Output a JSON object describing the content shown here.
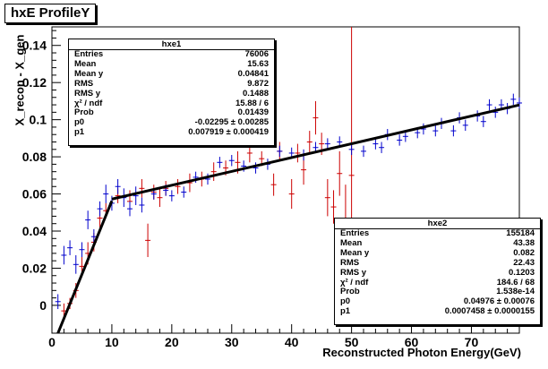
{
  "title": "hxE ProfileY",
  "chart_data": {
    "type": "scatter",
    "title": "hxE ProfileY",
    "xlabel": "Reconstructed Photon Energy(GeV)",
    "ylabel": "X_recon - X_gen",
    "xlim": [
      0,
      78
    ],
    "ylim": [
      -0.015,
      0.15
    ],
    "xticks": [
      "0",
      "10",
      "20",
      "30",
      "40",
      "50",
      "60",
      "70"
    ],
    "yticks": [
      "0",
      "0.02",
      "0.04",
      "0.06",
      "0.08",
      "0.1",
      "0.12",
      "0.14"
    ],
    "colors": {
      "hxe1": "#cc0000",
      "hxe2": "#0000cc",
      "fit": "#000000"
    },
    "series": [
      {
        "name": "hxe1",
        "points": [
          {
            "x": 2,
            "y": -0.003,
            "err": 0.004
          },
          {
            "x": 3,
            "y": 0.001,
            "err": 0.003
          },
          {
            "x": 4,
            "y": 0.008,
            "err": 0.004
          },
          {
            "x": 5,
            "y": 0.021,
            "err": 0.005
          },
          {
            "x": 6,
            "y": 0.028,
            "err": 0.006
          },
          {
            "x": 7,
            "y": 0.034,
            "err": 0.005
          },
          {
            "x": 8,
            "y": 0.047,
            "err": 0.005
          },
          {
            "x": 9,
            "y": 0.051,
            "err": 0.004
          },
          {
            "x": 11,
            "y": 0.059,
            "err": 0.004
          },
          {
            "x": 13,
            "y": 0.056,
            "err": 0.006
          },
          {
            "x": 15,
            "y": 0.063,
            "err": 0.005
          },
          {
            "x": 16,
            "y": 0.035,
            "err": 0.009
          },
          {
            "x": 17,
            "y": 0.061,
            "err": 0.004
          },
          {
            "x": 18,
            "y": 0.058,
            "err": 0.005
          },
          {
            "x": 19,
            "y": 0.063,
            "err": 0.004
          },
          {
            "x": 21,
            "y": 0.064,
            "err": 0.004
          },
          {
            "x": 23,
            "y": 0.066,
            "err": 0.005
          },
          {
            "x": 25,
            "y": 0.068,
            "err": 0.004
          },
          {
            "x": 27,
            "y": 0.072,
            "err": 0.005
          },
          {
            "x": 29,
            "y": 0.074,
            "err": 0.004
          },
          {
            "x": 31,
            "y": 0.077,
            "err": 0.006
          },
          {
            "x": 33,
            "y": 0.082,
            "err": 0.005
          },
          {
            "x": 35,
            "y": 0.079,
            "err": 0.004
          },
          {
            "x": 37,
            "y": 0.065,
            "err": 0.006
          },
          {
            "x": 38,
            "y": 0.083,
            "err": 0.005
          },
          {
            "x": 40,
            "y": 0.06,
            "err": 0.008
          },
          {
            "x": 41,
            "y": 0.082,
            "err": 0.005
          },
          {
            "x": 42,
            "y": 0.073,
            "err": 0.008
          },
          {
            "x": 43,
            "y": 0.088,
            "err": 0.006
          },
          {
            "x": 44,
            "y": 0.101,
            "err": 0.009
          },
          {
            "x": 45,
            "y": 0.087,
            "err": 0.006
          },
          {
            "x": 46,
            "y": 0.058,
            "err": 0.01
          },
          {
            "x": 47,
            "y": 0.053,
            "err": 0.009
          },
          {
            "x": 48,
            "y": 0.071,
            "err": 0.012
          },
          {
            "x": 49,
            "y": 0.047,
            "err": 0.018
          },
          {
            "x": 50,
            "y": 0.07,
            "err": 0.08
          }
        ]
      },
      {
        "name": "hxe2",
        "points": [
          {
            "x": 1,
            "y": 0.002,
            "err": 0.004
          },
          {
            "x": 2,
            "y": 0.027,
            "err": 0.005
          },
          {
            "x": 3,
            "y": 0.031,
            "err": 0.004
          },
          {
            "x": 4,
            "y": 0.022,
            "err": 0.005
          },
          {
            "x": 5,
            "y": 0.03,
            "err": 0.004
          },
          {
            "x": 6,
            "y": 0.046,
            "err": 0.005
          },
          {
            "x": 7,
            "y": 0.037,
            "err": 0.004
          },
          {
            "x": 8,
            "y": 0.052,
            "err": 0.004
          },
          {
            "x": 9,
            "y": 0.06,
            "err": 0.005
          },
          {
            "x": 10,
            "y": 0.055,
            "err": 0.004
          },
          {
            "x": 11,
            "y": 0.064,
            "err": 0.004
          },
          {
            "x": 12,
            "y": 0.058,
            "err": 0.005
          },
          {
            "x": 13,
            "y": 0.052,
            "err": 0.004
          },
          {
            "x": 14,
            "y": 0.059,
            "err": 0.005
          },
          {
            "x": 15,
            "y": 0.054,
            "err": 0.004
          },
          {
            "x": 17,
            "y": 0.06,
            "err": 0.003
          },
          {
            "x": 19,
            "y": 0.062,
            "err": 0.003
          },
          {
            "x": 20,
            "y": 0.059,
            "err": 0.003
          },
          {
            "x": 22,
            "y": 0.061,
            "err": 0.003
          },
          {
            "x": 24,
            "y": 0.069,
            "err": 0.003
          },
          {
            "x": 26,
            "y": 0.068,
            "err": 0.003
          },
          {
            "x": 28,
            "y": 0.077,
            "err": 0.003
          },
          {
            "x": 30,
            "y": 0.078,
            "err": 0.003
          },
          {
            "x": 32,
            "y": 0.075,
            "err": 0.003
          },
          {
            "x": 34,
            "y": 0.074,
            "err": 0.003
          },
          {
            "x": 36,
            "y": 0.076,
            "err": 0.003
          },
          {
            "x": 38,
            "y": 0.083,
            "err": 0.003
          },
          {
            "x": 40,
            "y": 0.082,
            "err": 0.003
          },
          {
            "x": 42,
            "y": 0.081,
            "err": 0.003
          },
          {
            "x": 44,
            "y": 0.085,
            "err": 0.003
          },
          {
            "x": 46,
            "y": 0.087,
            "err": 0.003
          },
          {
            "x": 48,
            "y": 0.088,
            "err": 0.003
          },
          {
            "x": 50,
            "y": 0.084,
            "err": 0.003
          },
          {
            "x": 52,
            "y": 0.083,
            "err": 0.003
          },
          {
            "x": 54,
            "y": 0.087,
            "err": 0.003
          },
          {
            "x": 55,
            "y": 0.085,
            "err": 0.003
          },
          {
            "x": 56,
            "y": 0.092,
            "err": 0.003
          },
          {
            "x": 58,
            "y": 0.089,
            "err": 0.003
          },
          {
            "x": 59,
            "y": 0.091,
            "err": 0.003
          },
          {
            "x": 61,
            "y": 0.093,
            "err": 0.003
          },
          {
            "x": 62,
            "y": 0.095,
            "err": 0.003
          },
          {
            "x": 64,
            "y": 0.094,
            "err": 0.003
          },
          {
            "x": 65,
            "y": 0.098,
            "err": 0.003
          },
          {
            "x": 67,
            "y": 0.094,
            "err": 0.003
          },
          {
            "x": 68,
            "y": 0.101,
            "err": 0.003
          },
          {
            "x": 69,
            "y": 0.097,
            "err": 0.003
          },
          {
            "x": 71,
            "y": 0.102,
            "err": 0.003
          },
          {
            "x": 72,
            "y": 0.099,
            "err": 0.003
          },
          {
            "x": 73,
            "y": 0.108,
            "err": 0.003
          },
          {
            "x": 74,
            "y": 0.104,
            "err": 0.003
          },
          {
            "x": 75,
            "y": 0.108,
            "err": 0.003
          },
          {
            "x": 76,
            "y": 0.106,
            "err": 0.003
          },
          {
            "x": 77,
            "y": 0.111,
            "err": 0.003
          },
          {
            "x": 78,
            "y": 0.109,
            "err": 0.003
          }
        ]
      }
    ],
    "fits": [
      {
        "name": "hxe1 fit",
        "x": [
          1,
          10
        ],
        "p0": -0.02295,
        "p1": 0.007919
      },
      {
        "name": "hxe2 fit",
        "x": [
          10,
          78
        ],
        "p0": 0.04976,
        "p1": 0.0007458
      }
    ]
  },
  "stats": {
    "hxe1": {
      "name": "hxe1",
      "rows": [
        {
          "k": "Entries",
          "v": "76006"
        },
        {
          "k": "Mean",
          "v": "15.63"
        },
        {
          "k": "Mean y",
          "v": "0.04841"
        },
        {
          "k": "RMS",
          "v": "9.872"
        },
        {
          "k": "RMS y",
          "v": "0.1488"
        },
        {
          "k": "χ² / ndf",
          "v": "15.88 / 6"
        },
        {
          "k": "Prob",
          "v": "0.01439"
        },
        {
          "k": "p0",
          "v": "-0.02295 ± 0.00285"
        },
        {
          "k": "p1",
          "v": "0.007919 ± 0.000419"
        }
      ]
    },
    "hxe2": {
      "name": "hxe2",
      "rows": [
        {
          "k": "Entries",
          "v": "155184"
        },
        {
          "k": "Mean",
          "v": "43.38"
        },
        {
          "k": "Mean y",
          "v": "0.082"
        },
        {
          "k": "RMS",
          "v": "22.43"
        },
        {
          "k": "RMS y",
          "v": "0.1203"
        },
        {
          "k": "χ² / ndf",
          "v": "184.6 / 68"
        },
        {
          "k": "Prob",
          "v": "1.538e-14"
        },
        {
          "k": "p0",
          "v": "0.04976 ± 0.00076"
        },
        {
          "k": "p1",
          "v": "0.0007458 ± 0.0000155"
        }
      ]
    }
  }
}
